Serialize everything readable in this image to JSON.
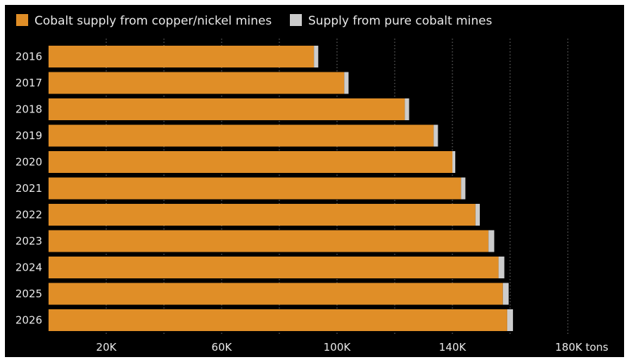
{
  "chart_data": {
    "type": "bar",
    "orientation": "horizontal",
    "stacked": true,
    "categories": [
      "2016",
      "2017",
      "2018",
      "2019",
      "2020",
      "2021",
      "2022",
      "2023",
      "2024",
      "2025",
      "2026"
    ],
    "series": [
      {
        "name": "Cobalt supply from copper/nickel mines",
        "color": "#e08e27",
        "values": [
          92000,
          102500,
          123500,
          133500,
          140000,
          143000,
          148000,
          152500,
          156000,
          157500,
          159000
        ]
      },
      {
        "name": "Supply from pure cobalt mines",
        "color": "#cccccc",
        "values": [
          1500,
          1500,
          1500,
          1500,
          1000,
          1500,
          1500,
          2000,
          2000,
          2000,
          2000
        ]
      }
    ],
    "x_ticks": [
      {
        "value": 20000,
        "label": "20K"
      },
      {
        "value": 60000,
        "label": "60K"
      },
      {
        "value": 100000,
        "label": "100K"
      },
      {
        "value": 140000,
        "label": "140K"
      },
      {
        "value": 180000,
        "label": "180K tons"
      }
    ],
    "gridlines": [
      20000,
      40000,
      60000,
      80000,
      100000,
      120000,
      140000,
      160000,
      180000
    ],
    "xlim": [
      0,
      200000
    ],
    "grid": true,
    "legend_position": "top-left",
    "background": "#000000"
  }
}
